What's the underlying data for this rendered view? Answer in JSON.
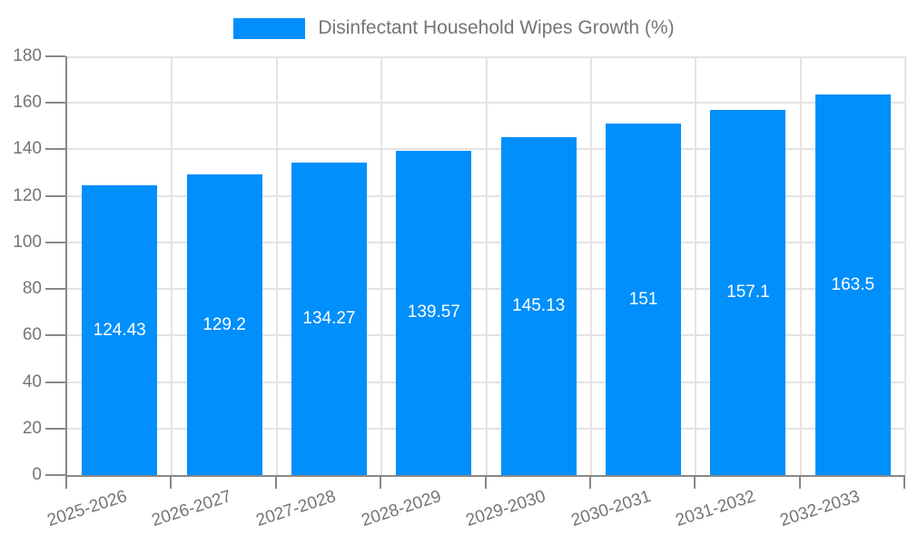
{
  "legend": {
    "label": "Disinfectant Household Wipes Growth (%)"
  },
  "chart_data": {
    "type": "bar",
    "title": "Disinfectant Household Wipes Growth (%)",
    "categories": [
      "2025-2026",
      "2026-2027",
      "2027-2028",
      "2028-2029",
      "2029-2030",
      "2030-2031",
      "2031-2032",
      "2032-2033"
    ],
    "series": [
      {
        "name": "Disinfectant Household Wipes Growth (%)",
        "values": [
          124.43,
          129.2,
          134.27,
          139.57,
          145.13,
          151,
          157.1,
          163.5
        ],
        "value_labels": [
          "124.43",
          "129.2",
          "134.27",
          "139.57",
          "145.13",
          "151",
          "157.1",
          "163.5"
        ]
      }
    ],
    "xlabel": "",
    "ylabel": "",
    "ylim": [
      0,
      180
    ],
    "yticks": [
      0,
      20,
      40,
      60,
      80,
      100,
      120,
      140,
      160,
      180
    ],
    "grid": true,
    "legend_position": "top",
    "x_label_rotation_deg": -18,
    "colors": {
      "bar": "#008ffb",
      "grid": "#e3e3e3",
      "axis": "#888888",
      "tick_labels": "#757575",
      "value_labels": "#ffffff"
    }
  }
}
